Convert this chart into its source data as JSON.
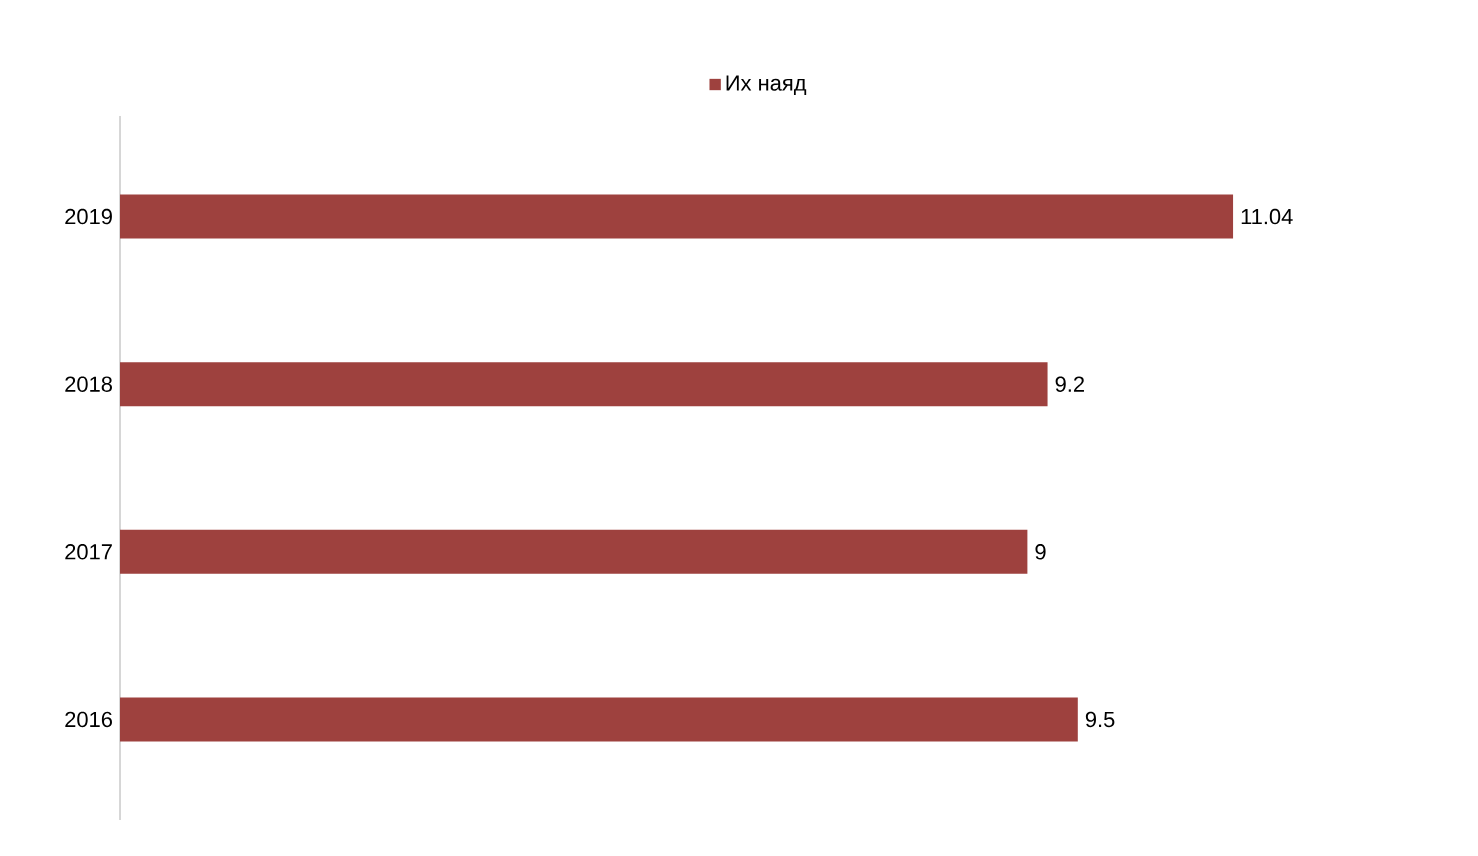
{
  "chart_data": {
    "type": "bar",
    "orientation": "horizontal",
    "categories": [
      "2019",
      "2018",
      "2017",
      "2016"
    ],
    "series": [
      {
        "name": "Их наяд",
        "color": "#9e413e",
        "values": [
          11.04,
          9.2,
          9,
          9.5
        ]
      }
    ],
    "data_labels": true,
    "legend": "top"
  }
}
